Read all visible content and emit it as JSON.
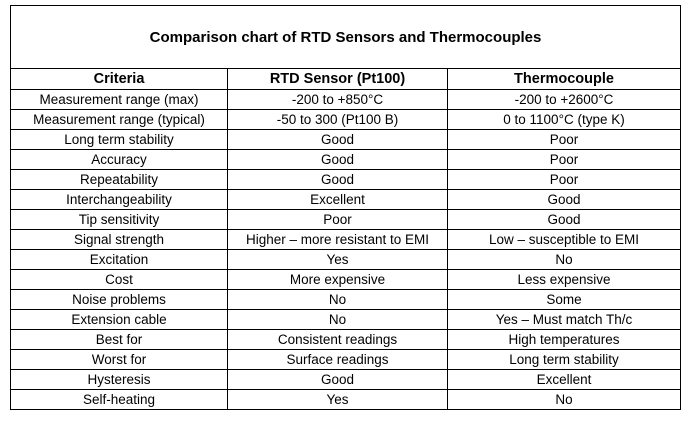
{
  "table": {
    "title": "Comparison chart of RTD Sensors and Thermocouples",
    "header": [
      "Criteria",
      "RTD Sensor (Pt100)",
      "Thermocouple"
    ],
    "rows": [
      [
        "Measurement range (max)",
        "-200 to +850°C",
        "-200 to +2600°C"
      ],
      [
        "Measurement range (typical)",
        "-50 to 300 (Pt100 B)",
        "0 to 1100°C (type K)"
      ],
      [
        "Long term stability",
        "Good",
        "Poor"
      ],
      [
        "Accuracy",
        "Good",
        "Poor"
      ],
      [
        "Repeatability",
        "Good",
        "Poor"
      ],
      [
        "Interchangeability",
        "Excellent",
        "Good"
      ],
      [
        "Tip sensitivity",
        "Poor",
        "Good"
      ],
      [
        "Signal strength",
        "Higher – more resistant to EMI",
        "Low – susceptible to EMI"
      ],
      [
        "Excitation",
        "Yes",
        "No"
      ],
      [
        "Cost",
        "More expensive",
        "Less expensive"
      ],
      [
        "Noise problems",
        "No",
        "Some"
      ],
      [
        "Extension cable",
        "No",
        "Yes – Must match Th/c"
      ],
      [
        "Best for",
        "Consistent readings",
        "High temperatures"
      ],
      [
        "Worst for",
        "Surface readings",
        "Long term stability"
      ],
      [
        "Hysteresis",
        "Good",
        "Excellent"
      ],
      [
        "Self-heating",
        "Yes",
        "No"
      ]
    ]
  }
}
